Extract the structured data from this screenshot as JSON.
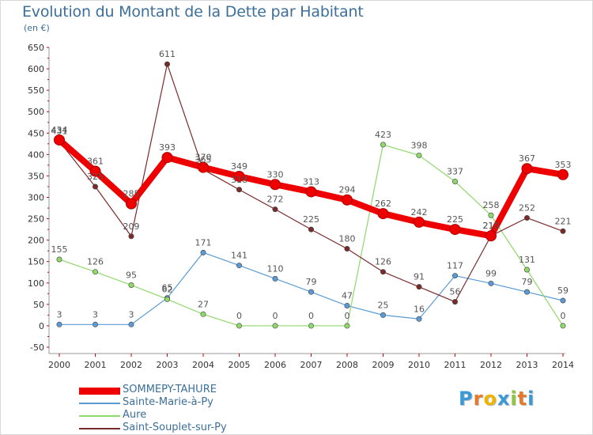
{
  "chart_data": {
    "type": "line",
    "title": "Evolution du Montant de la Dette par Habitant",
    "unit": "(en €)",
    "x": [
      "2000",
      "2001",
      "2002",
      "2003",
      "2004",
      "2005",
      "2006",
      "2007",
      "2008",
      "2009",
      "2010",
      "2011",
      "2012",
      "2013",
      "2014"
    ],
    "ylim": [
      -50,
      650
    ],
    "yticks": [
      -50,
      0,
      50,
      100,
      150,
      200,
      250,
      300,
      350,
      400,
      450,
      500,
      550,
      600,
      650
    ],
    "grid": false,
    "legend": "bottom-left",
    "series": [
      {
        "name": "SOMMEPY-TAHURE",
        "color": "#ee0000",
        "values": [
          434,
          361,
          285,
          393,
          370,
          349,
          330,
          313,
          294,
          262,
          242,
          225,
          210,
          367,
          353
        ]
      },
      {
        "name": "Sainte-Marie-à-Py",
        "color": "#5b9bd5",
        "values": [
          3,
          3,
          3,
          65,
          171,
          141,
          110,
          79,
          47,
          25,
          16,
          117,
          99,
          79,
          59
        ]
      },
      {
        "name": "Aure",
        "color": "#8fd86a",
        "values": [
          155,
          126,
          95,
          62,
          27,
          0,
          0,
          0,
          0,
          423,
          398,
          337,
          258,
          131,
          0
        ]
      },
      {
        "name": "Saint-Souplet-sur-Py",
        "color": "#7a2a2a",
        "values": [
          431,
          325,
          209,
          611,
          365,
          318,
          272,
          225,
          180,
          126,
          91,
          56,
          210,
          252,
          221
        ]
      }
    ]
  },
  "logo": {
    "text": "Proxiti",
    "colors": [
      "#3a9ad9",
      "#e8792b",
      "#f0b400",
      "#3a9ad9",
      "#8cc63e",
      "#e8792b",
      "#3a9ad9"
    ]
  }
}
